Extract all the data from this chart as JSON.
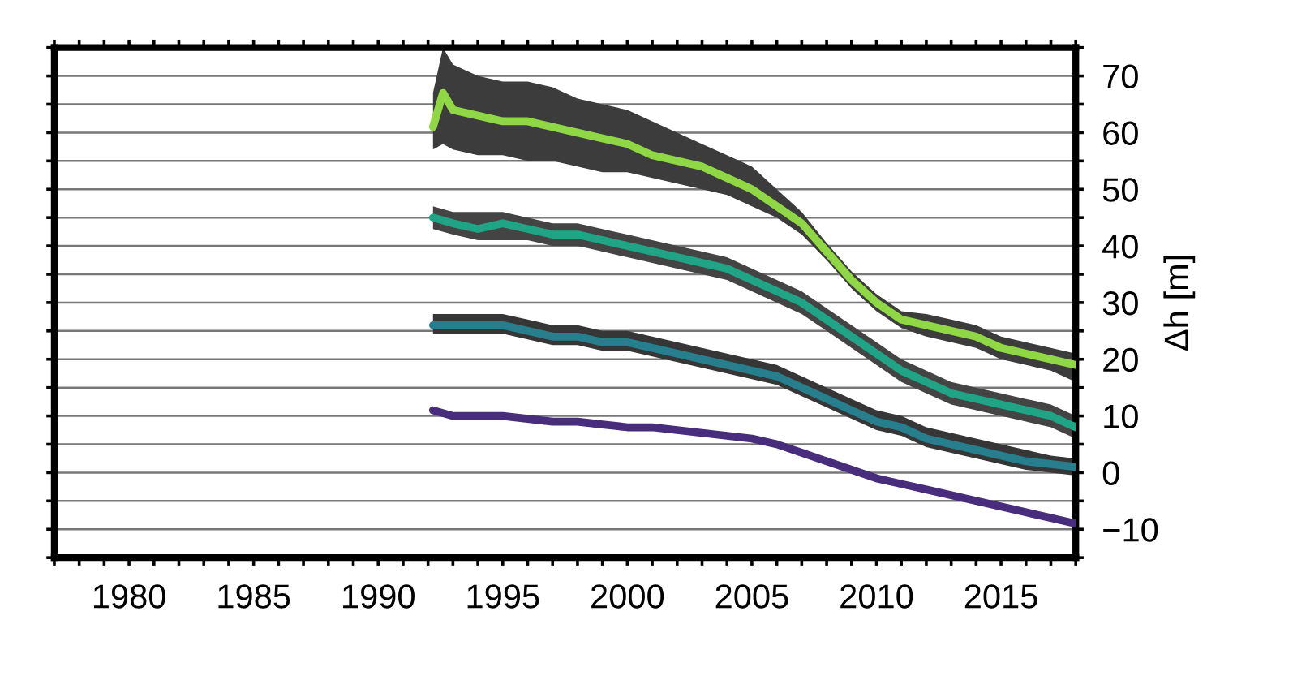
{
  "chart_data": {
    "type": "line",
    "ylabel": "Δh [m]",
    "xlim": [
      1977,
      2018
    ],
    "ylim": [
      -15,
      75
    ],
    "xticks": [
      {
        "value": 1977,
        "label": null
      },
      {
        "value": 1978,
        "label": null
      },
      {
        "value": 1979,
        "label": null
      },
      1980,
      {
        "value": 1981,
        "label": null
      },
      {
        "value": 1982,
        "label": null
      },
      {
        "value": 1983,
        "label": null
      },
      {
        "value": 1984,
        "label": null
      },
      1985,
      {
        "value": 1986,
        "label": null
      },
      {
        "value": 1987,
        "label": null
      },
      {
        "value": 1988,
        "label": null
      },
      {
        "value": 1989,
        "label": null
      },
      1990,
      {
        "value": 1991,
        "label": null
      },
      {
        "value": 1992,
        "label": null
      },
      {
        "value": 1993,
        "label": null
      },
      {
        "value": 1994,
        "label": null
      },
      1995,
      {
        "value": 1996,
        "label": null
      },
      {
        "value": 1997,
        "label": null
      },
      {
        "value": 1998,
        "label": null
      },
      {
        "value": 1999,
        "label": null
      },
      2000,
      {
        "value": 2001,
        "label": null
      },
      {
        "value": 2002,
        "label": null
      },
      {
        "value": 2003,
        "label": null
      },
      {
        "value": 2004,
        "label": null
      },
      2005,
      {
        "value": 2006,
        "label": null
      },
      {
        "value": 2007,
        "label": null
      },
      {
        "value": 2008,
        "label": null
      },
      {
        "value": 2009,
        "label": null
      },
      2010,
      {
        "value": 2011,
        "label": null
      },
      {
        "value": 2012,
        "label": null
      },
      {
        "value": 2013,
        "label": null
      },
      {
        "value": 2014,
        "label": null
      },
      2015,
      {
        "value": 2016,
        "label": null
      },
      {
        "value": 2017,
        "label": null
      },
      {
        "value": 2018,
        "label": null
      }
    ],
    "yticks": [
      {
        "value": -15,
        "label": null
      },
      {
        "value": -10,
        "label": "−10"
      },
      {
        "value": -5,
        "label": null
      },
      0,
      {
        "value": 5,
        "label": null
      },
      10,
      {
        "value": 15,
        "label": null
      },
      20,
      {
        "value": 25,
        "label": null
      },
      30,
      {
        "value": 35,
        "label": null
      },
      40,
      {
        "value": 45,
        "label": null
      },
      50,
      {
        "value": 55,
        "label": null
      },
      60,
      {
        "value": 65,
        "label": null
      },
      70,
      {
        "value": 75,
        "label": null
      }
    ],
    "grid": "y",
    "line_style": "solid",
    "marker": "none",
    "series": [
      {
        "color": "#8fd744",
        "x": [
          1992.2,
          1992.6,
          1993,
          1994,
          1995,
          1996,
          1997,
          1998,
          1999,
          2000,
          2001,
          2002,
          2003,
          2004,
          2005,
          2006,
          2007,
          2008,
          2009,
          2010,
          2011,
          2012,
          2013,
          2014,
          2015,
          2016,
          2017,
          2018
        ],
        "values": [
          61,
          67,
          64,
          63,
          62,
          62,
          61,
          60,
          59,
          58,
          56,
          55,
          54,
          52,
          50,
          47,
          44,
          39,
          34,
          30,
          27,
          26,
          25,
          24,
          22,
          21,
          20,
          19
        ],
        "lower": [
          57,
          58,
          57,
          56,
          56,
          55,
          55,
          54,
          53,
          53,
          52,
          51,
          50,
          49,
          47,
          45,
          42,
          37.5,
          32.5,
          28.5,
          25.5,
          24,
          23,
          22,
          20,
          19,
          18,
          16
        ],
        "upper": [
          67,
          75,
          72,
          70,
          69,
          69,
          68,
          66,
          65,
          64,
          62,
          60,
          58,
          56,
          54,
          50,
          46,
          40.5,
          35.5,
          31.5,
          28.5,
          28,
          27,
          26,
          24,
          23,
          22,
          21
        ]
      },
      {
        "color": "#20a486",
        "x": [
          1992.2,
          1993,
          1994,
          1995,
          1996,
          1997,
          1998,
          1999,
          2000,
          2001,
          2002,
          2003,
          2004,
          2005,
          2006,
          2007,
          2008,
          2009,
          2010,
          2011,
          2012,
          2013,
          2014,
          2015,
          2016,
          2017,
          2018
        ],
        "values": [
          45,
          44,
          43,
          44,
          43,
          42,
          42,
          41,
          40,
          39,
          38,
          37,
          36,
          34,
          32,
          30,
          27,
          24,
          21,
          18,
          16,
          14,
          13,
          12,
          11,
          10,
          8
        ],
        "lower": [
          43,
          42,
          41,
          41,
          41,
          40,
          40,
          39,
          38,
          37,
          36,
          35,
          34,
          32,
          30,
          28,
          25,
          22,
          19,
          16,
          14,
          12,
          11,
          10,
          9,
          8,
          6
        ],
        "upper": [
          47,
          46,
          46,
          46,
          45,
          44,
          44,
          43,
          42,
          41,
          40,
          39,
          38,
          36,
          34,
          32,
          29,
          26,
          23,
          20,
          18,
          16,
          15,
          14,
          13,
          12,
          10
        ]
      },
      {
        "color": "#277f8e",
        "x": [
          1992.2,
          1993,
          1994,
          1995,
          1996,
          1997,
          1998,
          1999,
          2000,
          2001,
          2002,
          2003,
          2004,
          2005,
          2006,
          2007,
          2008,
          2009,
          2010,
          2011,
          2012,
          2013,
          2014,
          2015,
          2016,
          2017,
          2018
        ],
        "values": [
          26,
          26,
          26,
          26,
          25,
          24,
          24,
          23,
          23,
          22,
          21,
          20,
          19,
          18,
          17,
          15,
          13,
          11,
          9,
          8,
          6,
          5,
          4,
          3,
          2,
          1.5,
          1
        ],
        "lower": [
          24.5,
          24.5,
          24.5,
          24.5,
          23.5,
          22.5,
          22.5,
          21.5,
          21.5,
          20.5,
          19.5,
          18.5,
          17.5,
          16.5,
          15.5,
          13.5,
          11.5,
          9.5,
          7.5,
          6.5,
          4.5,
          3.5,
          2.5,
          1.5,
          0.5,
          0,
          -0.5
        ],
        "upper": [
          28,
          28,
          28,
          28,
          27,
          26,
          26,
          25,
          25,
          24,
          23,
          22,
          21,
          20,
          19,
          17,
          15,
          13,
          11,
          10,
          8,
          7,
          6,
          5,
          4,
          3,
          2.5
        ]
      },
      {
        "color": "#472d7b",
        "x": [
          1992.2,
          1993,
          1994,
          1995,
          1996,
          1997,
          1998,
          1999,
          2000,
          2001,
          2002,
          2003,
          2004,
          2005,
          2006,
          2007,
          2008,
          2009,
          2010,
          2011,
          2012,
          2013,
          2014,
          2015,
          2016,
          2017,
          2018
        ],
        "values": [
          11,
          10,
          10,
          10,
          9.5,
          9,
          9,
          8.5,
          8,
          8,
          7.5,
          7,
          6.5,
          6,
          5,
          3.5,
          2,
          0.5,
          -1,
          -2,
          -3,
          -4,
          -5,
          -6,
          -7,
          -8,
          -9
        ]
      }
    ]
  }
}
